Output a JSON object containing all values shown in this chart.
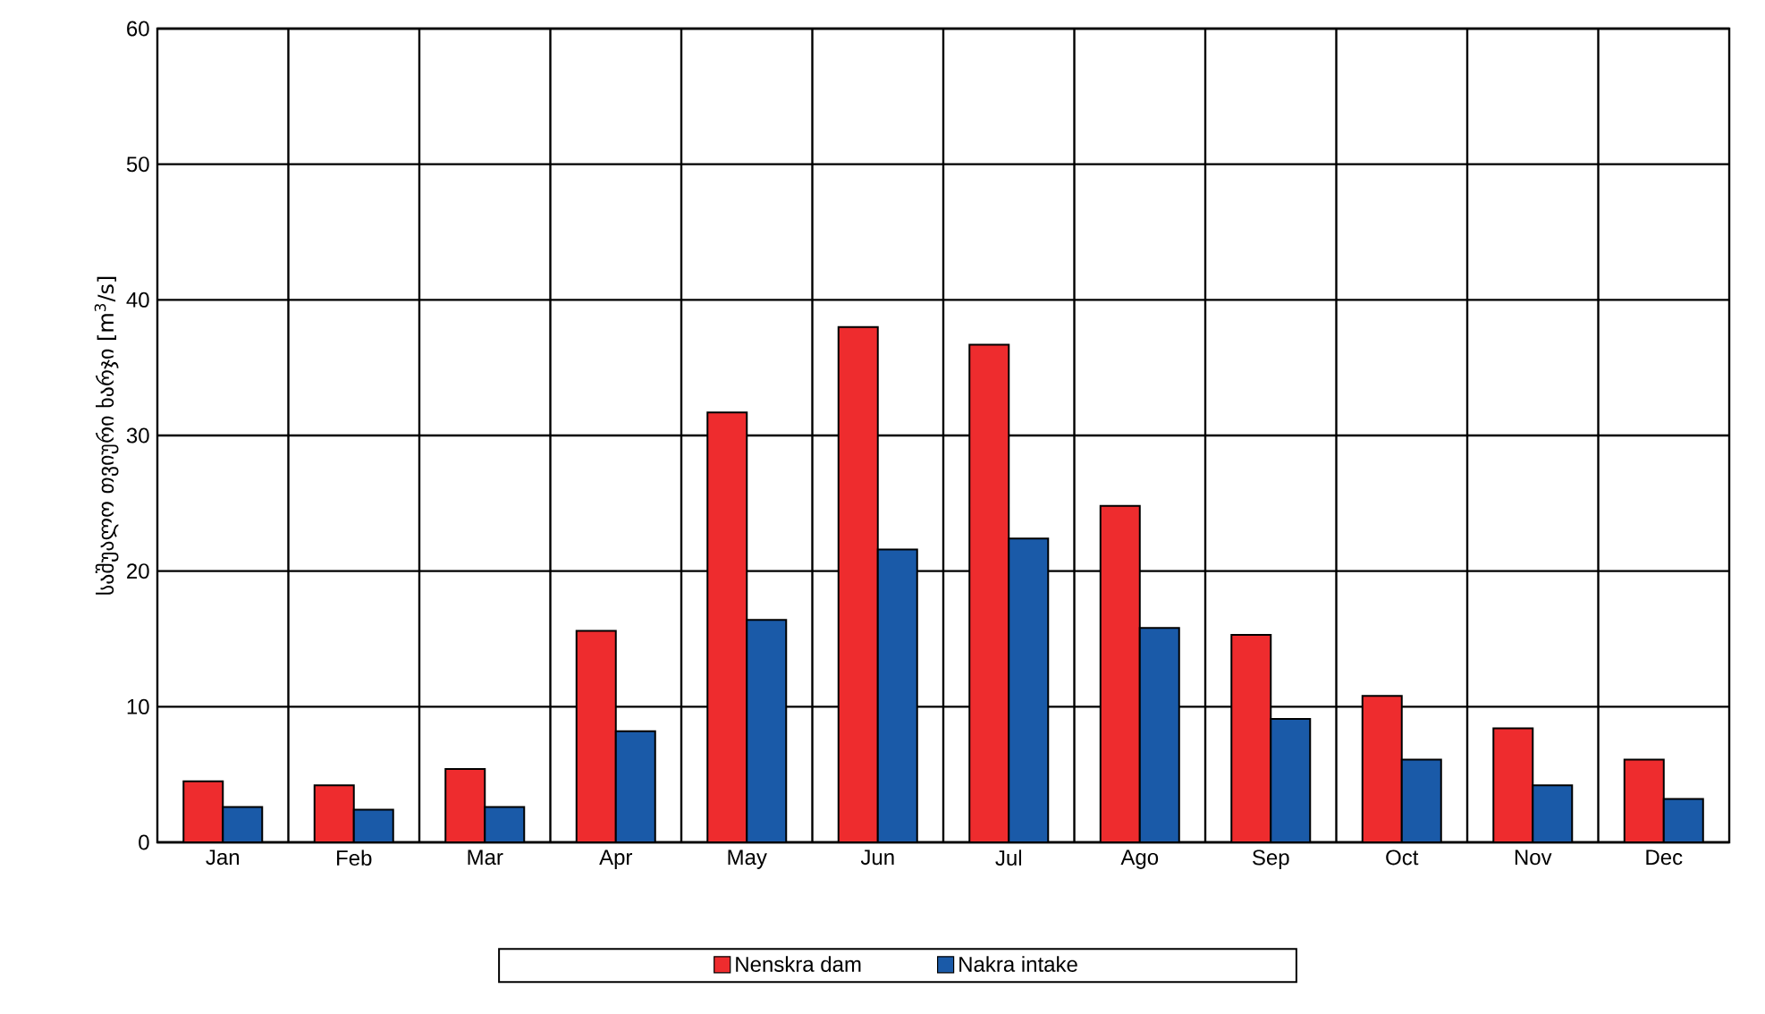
{
  "chart_data": {
    "type": "bar",
    "ylabel": "საშუალო თვიური ხარჯი [m$^{3}$/s]",
    "categories": [
      "Jan",
      "Feb",
      "Mar",
      "Apr",
      "May",
      "Jun",
      "Jul",
      "Ago",
      "Sep",
      "Oct",
      "Nov",
      "Dec"
    ],
    "series": [
      {
        "name": "Nenskra dam",
        "color": "#ee2c2e",
        "values": [
          4.5,
          4.2,
          5.4,
          15.6,
          31.7,
          38.0,
          36.7,
          24.8,
          15.3,
          10.8,
          8.4,
          6.1
        ]
      },
      {
        "name": "Nakra intake",
        "color": "#1a5aa8",
        "values": [
          2.6,
          2.4,
          2.6,
          8.2,
          16.4,
          21.6,
          22.4,
          15.8,
          9.1,
          6.1,
          4.2,
          3.2
        ]
      }
    ],
    "ylim": [
      0,
      60
    ],
    "yticks": [
      0,
      10,
      20,
      30,
      40,
      50,
      60
    ],
    "grid": true,
    "legend": "bottom"
  }
}
